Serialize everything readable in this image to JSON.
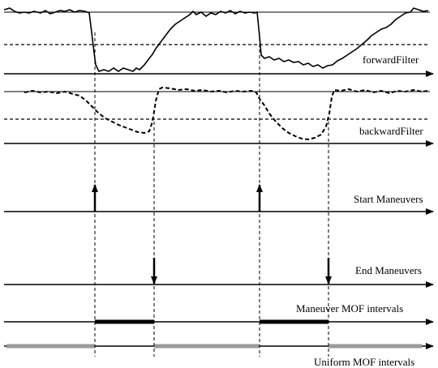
{
  "labels": {
    "forward": "forwardFilter",
    "backward": "backwardFilter",
    "start": "Start Maneuvers",
    "end": "End Maneuvers",
    "maneuver_mof": "Maneuver MOF intervals",
    "uniform_mof": "Uniform MOF intervals"
  },
  "colors": {
    "line": "#000000",
    "uniform_bar": "#9a9a9a"
  }
}
